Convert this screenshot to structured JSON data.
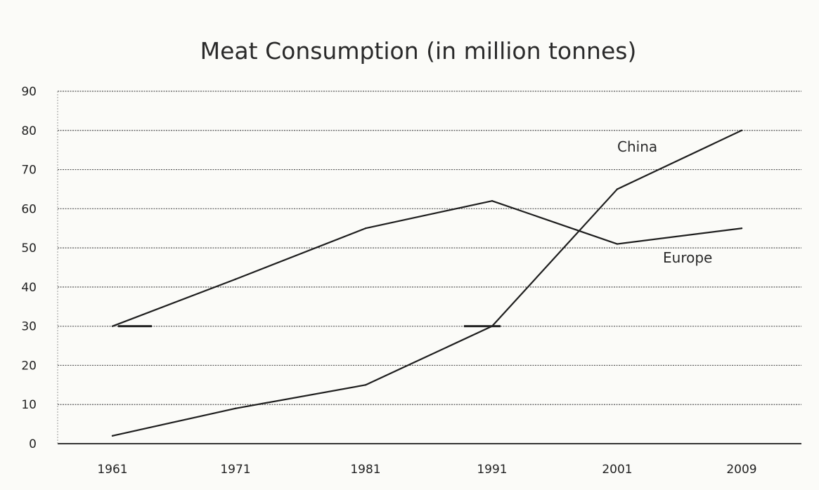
{
  "chart_data": {
    "type": "line",
    "title": "Meat Consumption (in million tonnes)",
    "xlabel": "",
    "ylabel": "",
    "categories": [
      "1961",
      "1971",
      "1981",
      "1991",
      "2001",
      "2009"
    ],
    "ylim": [
      0,
      90
    ],
    "yticks": [
      "0",
      "10",
      "20",
      "30",
      "40",
      "50",
      "60",
      "70",
      "80",
      "90"
    ],
    "grid": true,
    "legend": "none",
    "series": [
      {
        "name": "China",
        "values": [
          2,
          9,
          15,
          30,
          65,
          80
        ],
        "color": "#1e1e1e"
      },
      {
        "name": "Europe",
        "values": [
          30,
          42,
          55,
          62,
          51,
          55
        ],
        "color": "#1e1e1e"
      }
    ]
  }
}
